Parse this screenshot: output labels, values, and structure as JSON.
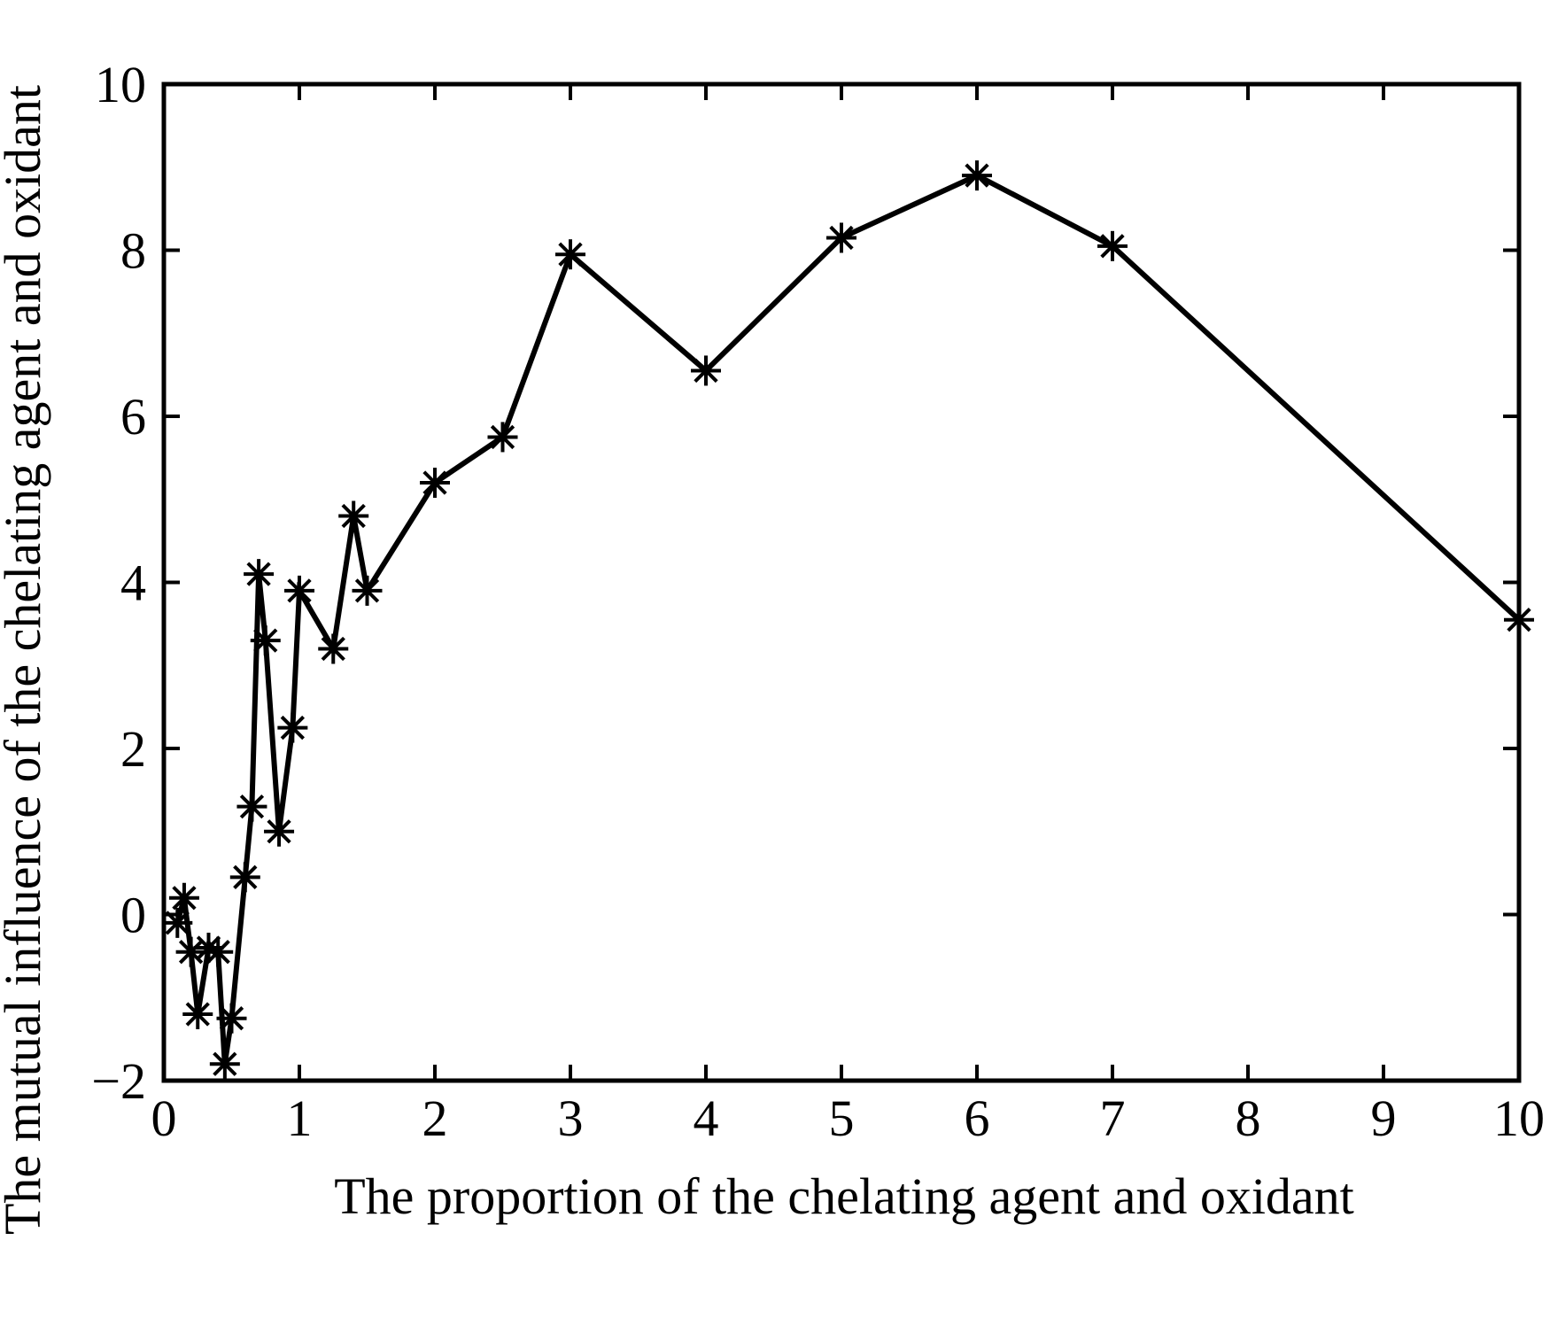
{
  "chart_data": {
    "type": "line",
    "title": "",
    "xlabel": "The proportion of the chelating agent and oxidant",
    "ylabel": "The mutual influence of the chelating agent and oxidant",
    "xlim": [
      0,
      10
    ],
    "ylim": [
      -2,
      10
    ],
    "xticks": [
      0,
      1,
      2,
      3,
      4,
      5,
      6,
      7,
      8,
      9,
      10
    ],
    "yticks": [
      -2,
      0,
      2,
      4,
      6,
      8,
      10
    ],
    "xtick_labels": [
      "0",
      "1",
      "2",
      "3",
      "4",
      "5",
      "6",
      "7",
      "8",
      "9",
      "10"
    ],
    "ytick_labels": [
      "−2",
      "0",
      "2",
      "4",
      "6",
      "8",
      "10"
    ],
    "grid": false,
    "legend": "none",
    "marker": "asterisk",
    "line_color": "#000000",
    "series": [
      {
        "x": [
          0.1,
          0.15,
          0.2,
          0.25,
          0.33,
          0.4,
          0.45,
          0.5,
          0.6,
          0.65,
          0.7,
          0.75,
          0.85,
          0.95,
          1.0,
          1.25,
          1.4,
          1.5,
          2.0,
          2.5,
          3.0,
          4.0,
          5.0,
          6.0,
          7.0,
          10.0
        ],
        "y": [
          -0.1,
          0.2,
          -0.45,
          -1.2,
          -0.4,
          -0.45,
          -1.8,
          -1.25,
          0.45,
          1.3,
          4.1,
          3.3,
          1.0,
          2.25,
          3.9,
          3.2,
          4.8,
          3.9,
          5.2,
          5.75,
          7.95,
          6.55,
          8.15,
          8.9,
          8.05,
          3.55
        ]
      }
    ]
  }
}
